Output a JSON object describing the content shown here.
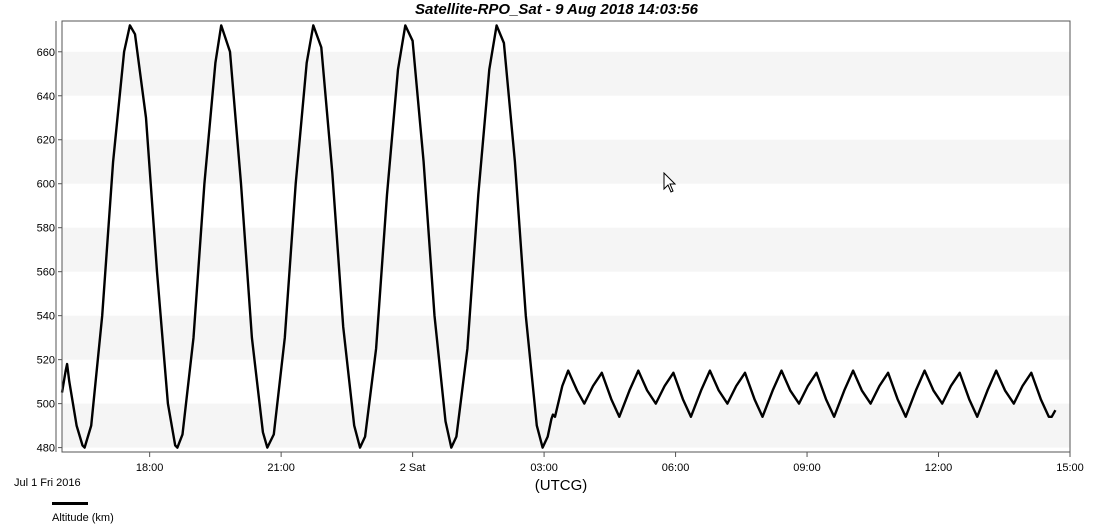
{
  "chart_data": {
    "type": "line",
    "title": "Satellite-RPO_Sat -  9 Aug 2018 14:03:56",
    "xlabel": "(UTCG)",
    "ylabel": "",
    "date_label": "Jul 1 Fri 2016",
    "x_range": [
      "2016-07-01 16:00",
      "2016-07-02 15:00"
    ],
    "ylim": [
      478,
      674
    ],
    "y_ticks": [
      480,
      500,
      520,
      540,
      560,
      580,
      600,
      620,
      640,
      660
    ],
    "x_ticks": [
      {
        "time": "2016-07-01 18:00",
        "label": "18:00"
      },
      {
        "time": "2016-07-01 21:00",
        "label": "21:00"
      },
      {
        "time": "2016-07-02 00:00",
        "label": "2 Sat"
      },
      {
        "time": "2016-07-02 03:00",
        "label": "03:00"
      },
      {
        "time": "2016-07-02 06:00",
        "label": "06:00"
      },
      {
        "time": "2016-07-02 09:00",
        "label": "09:00"
      },
      {
        "time": "2016-07-02 12:00",
        "label": "12:00"
      },
      {
        "time": "2016-07-02 15:00",
        "label": "15:00"
      }
    ],
    "grid": "alternating horizontal bands",
    "legend_position": "bottom-left",
    "series": [
      {
        "name": "Altitude (km)",
        "color": "#000000",
        "points": [
          [
            "2016-07-01 16:00",
            505
          ],
          [
            "2016-07-01 16:05",
            515
          ],
          [
            "2016-07-01 16:07",
            518
          ],
          [
            "2016-07-01 16:10",
            510
          ],
          [
            "2016-07-01 16:20",
            490
          ],
          [
            "2016-07-01 16:28",
            481
          ],
          [
            "2016-07-01 16:31",
            480
          ],
          [
            "2016-07-01 16:40",
            490
          ],
          [
            "2016-07-01 16:55",
            540
          ],
          [
            "2016-07-01 17:10",
            610
          ],
          [
            "2016-07-01 17:25",
            660
          ],
          [
            "2016-07-01 17:33",
            672
          ],
          [
            "2016-07-01 17:40",
            668
          ],
          [
            "2016-07-01 17:55",
            630
          ],
          [
            "2016-07-01 18:10",
            560
          ],
          [
            "2016-07-01 18:25",
            500
          ],
          [
            "2016-07-01 18:35",
            481
          ],
          [
            "2016-07-01 18:38",
            480
          ],
          [
            "2016-07-01 18:45",
            486
          ],
          [
            "2016-07-01 19:00",
            530
          ],
          [
            "2016-07-01 19:15",
            600
          ],
          [
            "2016-07-01 19:30",
            655
          ],
          [
            "2016-07-01 19:38",
            672
          ],
          [
            "2016-07-01 19:50",
            660
          ],
          [
            "2016-07-01 20:05",
            600
          ],
          [
            "2016-07-01 20:20",
            530
          ],
          [
            "2016-07-01 20:35",
            487
          ],
          [
            "2016-07-01 20:41",
            480
          ],
          [
            "2016-07-01 20:50",
            486
          ],
          [
            "2016-07-01 21:05",
            530
          ],
          [
            "2016-07-01 21:20",
            600
          ],
          [
            "2016-07-01 21:35",
            655
          ],
          [
            "2016-07-01 21:44",
            672
          ],
          [
            "2016-07-01 21:55",
            662
          ],
          [
            "2016-07-01 22:10",
            605
          ],
          [
            "2016-07-01 22:25",
            535
          ],
          [
            "2016-07-01 22:40",
            490
          ],
          [
            "2016-07-01 22:48",
            480
          ],
          [
            "2016-07-01 22:55",
            485
          ],
          [
            "2016-07-01 23:10",
            525
          ],
          [
            "2016-07-01 23:25",
            595
          ],
          [
            "2016-07-01 23:40",
            652
          ],
          [
            "2016-07-01 23:50",
            672
          ],
          [
            "2016-07-02 00:00",
            665
          ],
          [
            "2016-07-02 00:15",
            610
          ],
          [
            "2016-07-02 00:30",
            540
          ],
          [
            "2016-07-02 00:45",
            492
          ],
          [
            "2016-07-02 00:53",
            480
          ],
          [
            "2016-07-02 01:00",
            485
          ],
          [
            "2016-07-02 01:15",
            525
          ],
          [
            "2016-07-02 01:30",
            595
          ],
          [
            "2016-07-02 01:45",
            652
          ],
          [
            "2016-07-02 01:55",
            672
          ],
          [
            "2016-07-02 02:05",
            664
          ],
          [
            "2016-07-02 02:20",
            610
          ],
          [
            "2016-07-02 02:35",
            540
          ],
          [
            "2016-07-02 02:50",
            490
          ],
          [
            "2016-07-02 02:58",
            480
          ],
          [
            "2016-07-02 03:05",
            485
          ],
          [
            "2016-07-02 03:10",
            493
          ],
          [
            "2016-07-02 03:12",
            495
          ],
          [
            "2016-07-02 03:15",
            494
          ],
          [
            "2016-07-02 03:25",
            508
          ],
          [
            "2016-07-02 03:33",
            515
          ],
          [
            "2016-07-02 03:45",
            506
          ],
          [
            "2016-07-02 03:55",
            500
          ],
          [
            "2016-07-02 04:07",
            508
          ],
          [
            "2016-07-02 04:19",
            514
          ],
          [
            "2016-07-02 04:32",
            502
          ],
          [
            "2016-07-02 04:43",
            494
          ],
          [
            "2016-07-02 04:57",
            506
          ],
          [
            "2016-07-02 05:09",
            515
          ],
          [
            "2016-07-02 05:21",
            506
          ],
          [
            "2016-07-02 05:33",
            500
          ],
          [
            "2016-07-02 05:45",
            508
          ],
          [
            "2016-07-02 05:57",
            514
          ],
          [
            "2016-07-02 06:10",
            502
          ],
          [
            "2016-07-02 06:21",
            494
          ],
          [
            "2016-07-02 06:35",
            506
          ],
          [
            "2016-07-02 06:47",
            515
          ],
          [
            "2016-07-02 06:59",
            506
          ],
          [
            "2016-07-02 07:11",
            500
          ],
          [
            "2016-07-02 07:23",
            508
          ],
          [
            "2016-07-02 07:35",
            514
          ],
          [
            "2016-07-02 07:48",
            502
          ],
          [
            "2016-07-02 07:59",
            494
          ],
          [
            "2016-07-02 08:13",
            506
          ],
          [
            "2016-07-02 08:25",
            515
          ],
          [
            "2016-07-02 08:37",
            506
          ],
          [
            "2016-07-02 08:49",
            500
          ],
          [
            "2016-07-02 09:01",
            508
          ],
          [
            "2016-07-02 09:13",
            514
          ],
          [
            "2016-07-02 09:26",
            502
          ],
          [
            "2016-07-02 09:37",
            494
          ],
          [
            "2016-07-02 09:51",
            506
          ],
          [
            "2016-07-02 10:03",
            515
          ],
          [
            "2016-07-02 10:15",
            506
          ],
          [
            "2016-07-02 10:27",
            500
          ],
          [
            "2016-07-02 10:39",
            508
          ],
          [
            "2016-07-02 10:51",
            514
          ],
          [
            "2016-07-02 11:04",
            502
          ],
          [
            "2016-07-02 11:15",
            494
          ],
          [
            "2016-07-02 11:29",
            506
          ],
          [
            "2016-07-02 11:41",
            515
          ],
          [
            "2016-07-02 11:53",
            506
          ],
          [
            "2016-07-02 12:05",
            500
          ],
          [
            "2016-07-02 12:17",
            508
          ],
          [
            "2016-07-02 12:29",
            514
          ],
          [
            "2016-07-02 12:42",
            502
          ],
          [
            "2016-07-02 12:53",
            494
          ],
          [
            "2016-07-02 13:07",
            506
          ],
          [
            "2016-07-02 13:19",
            515
          ],
          [
            "2016-07-02 13:31",
            506
          ],
          [
            "2016-07-02 13:43",
            500
          ],
          [
            "2016-07-02 13:55",
            508
          ],
          [
            "2016-07-02 14:07",
            514
          ],
          [
            "2016-07-02 14:20",
            502
          ],
          [
            "2016-07-02 14:31",
            494
          ],
          [
            "2016-07-02 14:35",
            494
          ],
          [
            "2016-07-02 14:40",
            497
          ]
        ]
      }
    ]
  },
  "icons": {
    "cursor": "mouse-pointer-icon"
  }
}
